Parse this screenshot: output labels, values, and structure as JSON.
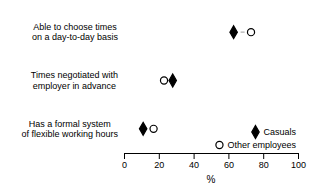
{
  "chart_data": {
    "type": "dumbbell",
    "categories": [
      "Able to choose times\non a day-to-day basis",
      "Times negotiated with\nemployer in advance",
      "Has a formal system\nof flexible working hours"
    ],
    "series": [
      {
        "name": "Casuals",
        "color": "#000000",
        "marker": "diamond",
        "values": [
          63,
          28,
          11
        ]
      },
      {
        "name": "Other employees",
        "color": "#000000",
        "marker": "open-circle",
        "values": [
          73,
          23,
          17
        ]
      }
    ],
    "x_label": "%",
    "xlim": [
      0,
      100
    ],
    "xticks": [
      0,
      20,
      40,
      60,
      80,
      100
    ],
    "line_style": "dashed",
    "legend": "lower right",
    "grid": false
  }
}
